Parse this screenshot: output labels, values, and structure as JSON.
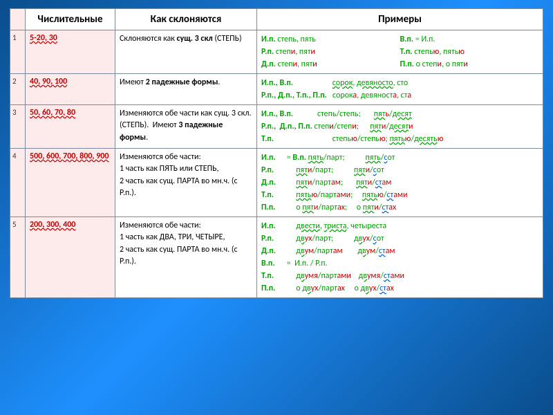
{
  "headers": {
    "num": "Числительные",
    "how": "Как склоняются",
    "ex": "Примеры"
  },
  "rows": [
    {
      "n": "1",
      "num": "5-20, 30",
      "how_plain": "Склоняются  как ",
      "how_b": "сущ.  3 скл",
      "how_after": " (СТЕПЬ)",
      "ex": {
        "left": [
          {
            "c": "И.п.",
            "t": " степь, пять"
          },
          {
            "c": "Р.п.",
            "t": " степ",
            "r": "и",
            ",": ", пят",
            "r2": "и"
          },
          {
            "c": "Д.п.",
            "t": " степ",
            "r": "и",
            ",": ", пят",
            "r2": "и"
          }
        ],
        "right": [
          {
            "c": "В.п.",
            "eq": " = И.п."
          },
          {
            "c": "Т.п.",
            "t": " степь",
            "r": "ю",
            ",": ", пять",
            "r2": "ю"
          },
          {
            "c": "П.п.",
            "t": " о степ",
            "r": "и",
            ",": ", о пят",
            "r2": "и"
          }
        ]
      }
    },
    {
      "n": "2",
      "num": "40, 90, 100",
      "how_plain": "Имеют ",
      "how_b": "2 падежные формы",
      "how_after": ".",
      "ex_lines": [
        {
          "cases": "И.п., В.п.",
          "vals": "сорок,  девяносто, сто",
          "r": ""
        },
        {
          "cases": "Р.п., Д.п., Т.п., П.п.",
          "vals": "сорок",
          "r": "а",
          "v2": ", девяност",
          "r2": "а",
          "v3": ", ст",
          "r3": "а"
        }
      ]
    },
    {
      "n": "3",
      "num": "50, 60, 70, 80",
      "how_plain": "Изменяются обе части как сущ. 3 скл. (СТЕПЬ).  Имеют ",
      "how_b": "3 падежные формы",
      "how_after": ".",
      "ex_lines3": [
        {
          "cases": "И.п., В.п.",
          "w": "степь/степь;",
          "w2": "пят",
          "r": "ь",
          "w3": "/десят",
          "r2": ""
        },
        {
          "cases": "Р.п.,  Д.п., П.п.",
          "w": "степ",
          "r": "и",
          "w2": "/степ",
          "r2": "и",
          "sep": ";",
          "w3": "пят",
          "r3": "и",
          "w4": "/десят",
          "r4": "и"
        },
        {
          "cases": "Т.п.",
          "w": "степь",
          "r": "ю",
          "w2": "/степь",
          "r2": "ю",
          "sep": ";",
          "w3": "пять",
          "r3": "ю",
          "w4": "/десять",
          "r4": "ю"
        }
      ]
    },
    {
      "n": "4",
      "num": "500, 600, 700, 800, 900",
      "how_multi": [
        "Изменяются обе части:",
        "1 часть как ПЯТЬ или СТЕПЬ,",
        "2 часть как сущ. ПАРТА  во мн.ч. (с Р.п.)."
      ],
      "ex4": [
        {
          "c": "И.п.",
          "eq": " = В.п. ",
          "l": "пять/парт;",
          "r": "пять/",
          "rr": "с",
          "rrt": "от"
        },
        {
          "c": "Р.п.",
          "l": "пят",
          "lr": "и",
          "l2": "/парт;",
          "r": "пят",
          "rr": "и",
          "r2": "/",
          "r3": "с",
          "r3t": "от"
        },
        {
          "c": "Д.п.",
          "l": "пят",
          "lr": "и",
          "l2": "/парт",
          "l2r": "ам",
          "sep": ";",
          "r": "пят",
          "rr": "и",
          "r2": "/",
          "r3": "ст",
          "r3t": "ам"
        },
        {
          "c": "Т.п.",
          "l": "пять",
          "lr": "ю",
          "l2": "/парт",
          "l2r": "ами",
          "sep": ";",
          "r": "пять",
          "rr": "ю",
          "r2": "/",
          "r3": "ст",
          "r3t": "ами"
        },
        {
          "c": "П.п.",
          "l": "о пят",
          "lr": "и",
          "l2": "/парт",
          "l2r": "ах",
          "sep": ";",
          "r": "о пят",
          "rr": "и",
          "r2": "/",
          "r3": "ст",
          "r3t": "ах"
        }
      ]
    },
    {
      "n": "5",
      "num": "200, 300, 400",
      "how_multi": [
        "Изменяются обе части:",
        "1 часть как ДВА, ТРИ, ЧЕТЫРЕ,",
        "2 часть как сущ. ПАРТА  во мн.ч. (с Р.п.)."
      ],
      "ex5": [
        {
          "c": "И.п.",
          "l": "двести, триста, четыреста"
        },
        {
          "c": "Р.п.",
          "l": "дв",
          "lr": "ух",
          "l2": "/парт;",
          "r": "дв",
          "rr": "ух",
          "r2": "/",
          "r3": "с",
          "r3t": "от"
        },
        {
          "c": "Д.п.",
          "l": "дв",
          "lr": "ум",
          "l2": "/парт",
          "l2r": "ам",
          "r": "дв",
          "rr": "ум",
          "r2": "/",
          "r3": "ст",
          "r3t": "ам"
        },
        {
          "c": "В.п.",
          "eq": " =  И.п. / Р.п."
        },
        {
          "c": "Т.п.",
          "l": "дв",
          "lr": "умя",
          "l2": "/парт",
          "l2r": "ами",
          "r": "дв",
          "rr": "умя",
          "r2": "/",
          "r3": "ст",
          "r3t": "ами"
        },
        {
          "c": "П.п.",
          "l": "о дв",
          "lr": "ух",
          "l2": "/парт",
          "l2r": "ах",
          "r": "о дв",
          "rr": "ух",
          "r2": "/",
          "r3": "ст",
          "r3t": "ах"
        }
      ]
    }
  ]
}
